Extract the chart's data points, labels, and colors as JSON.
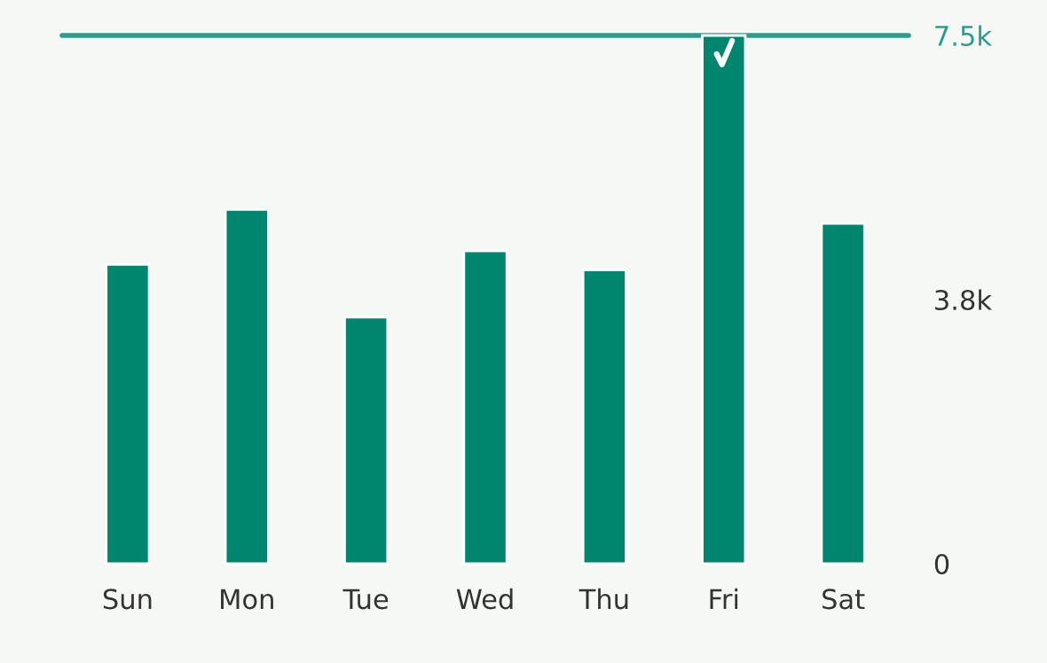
{
  "chart_data": {
    "type": "bar",
    "categories": [
      "Sun",
      "Mon",
      "Tue",
      "Wed",
      "Thu",
      "Fri",
      "Sat"
    ],
    "values": [
      4250,
      5030,
      3500,
      4440,
      4170,
      7500,
      4830
    ],
    "color": "#00866f",
    "ylim": [
      0,
      7500
    ],
    "yticks": [
      0,
      {
        "value": 3750,
        "label": "3.8k"
      },
      {
        "value": 7500,
        "label": "7.5k"
      }
    ],
    "ref_lines": [
      {
        "axis": "y",
        "value": 7500,
        "color": "#2a9d8c"
      }
    ],
    "grid": false,
    "legend": false
  }
}
